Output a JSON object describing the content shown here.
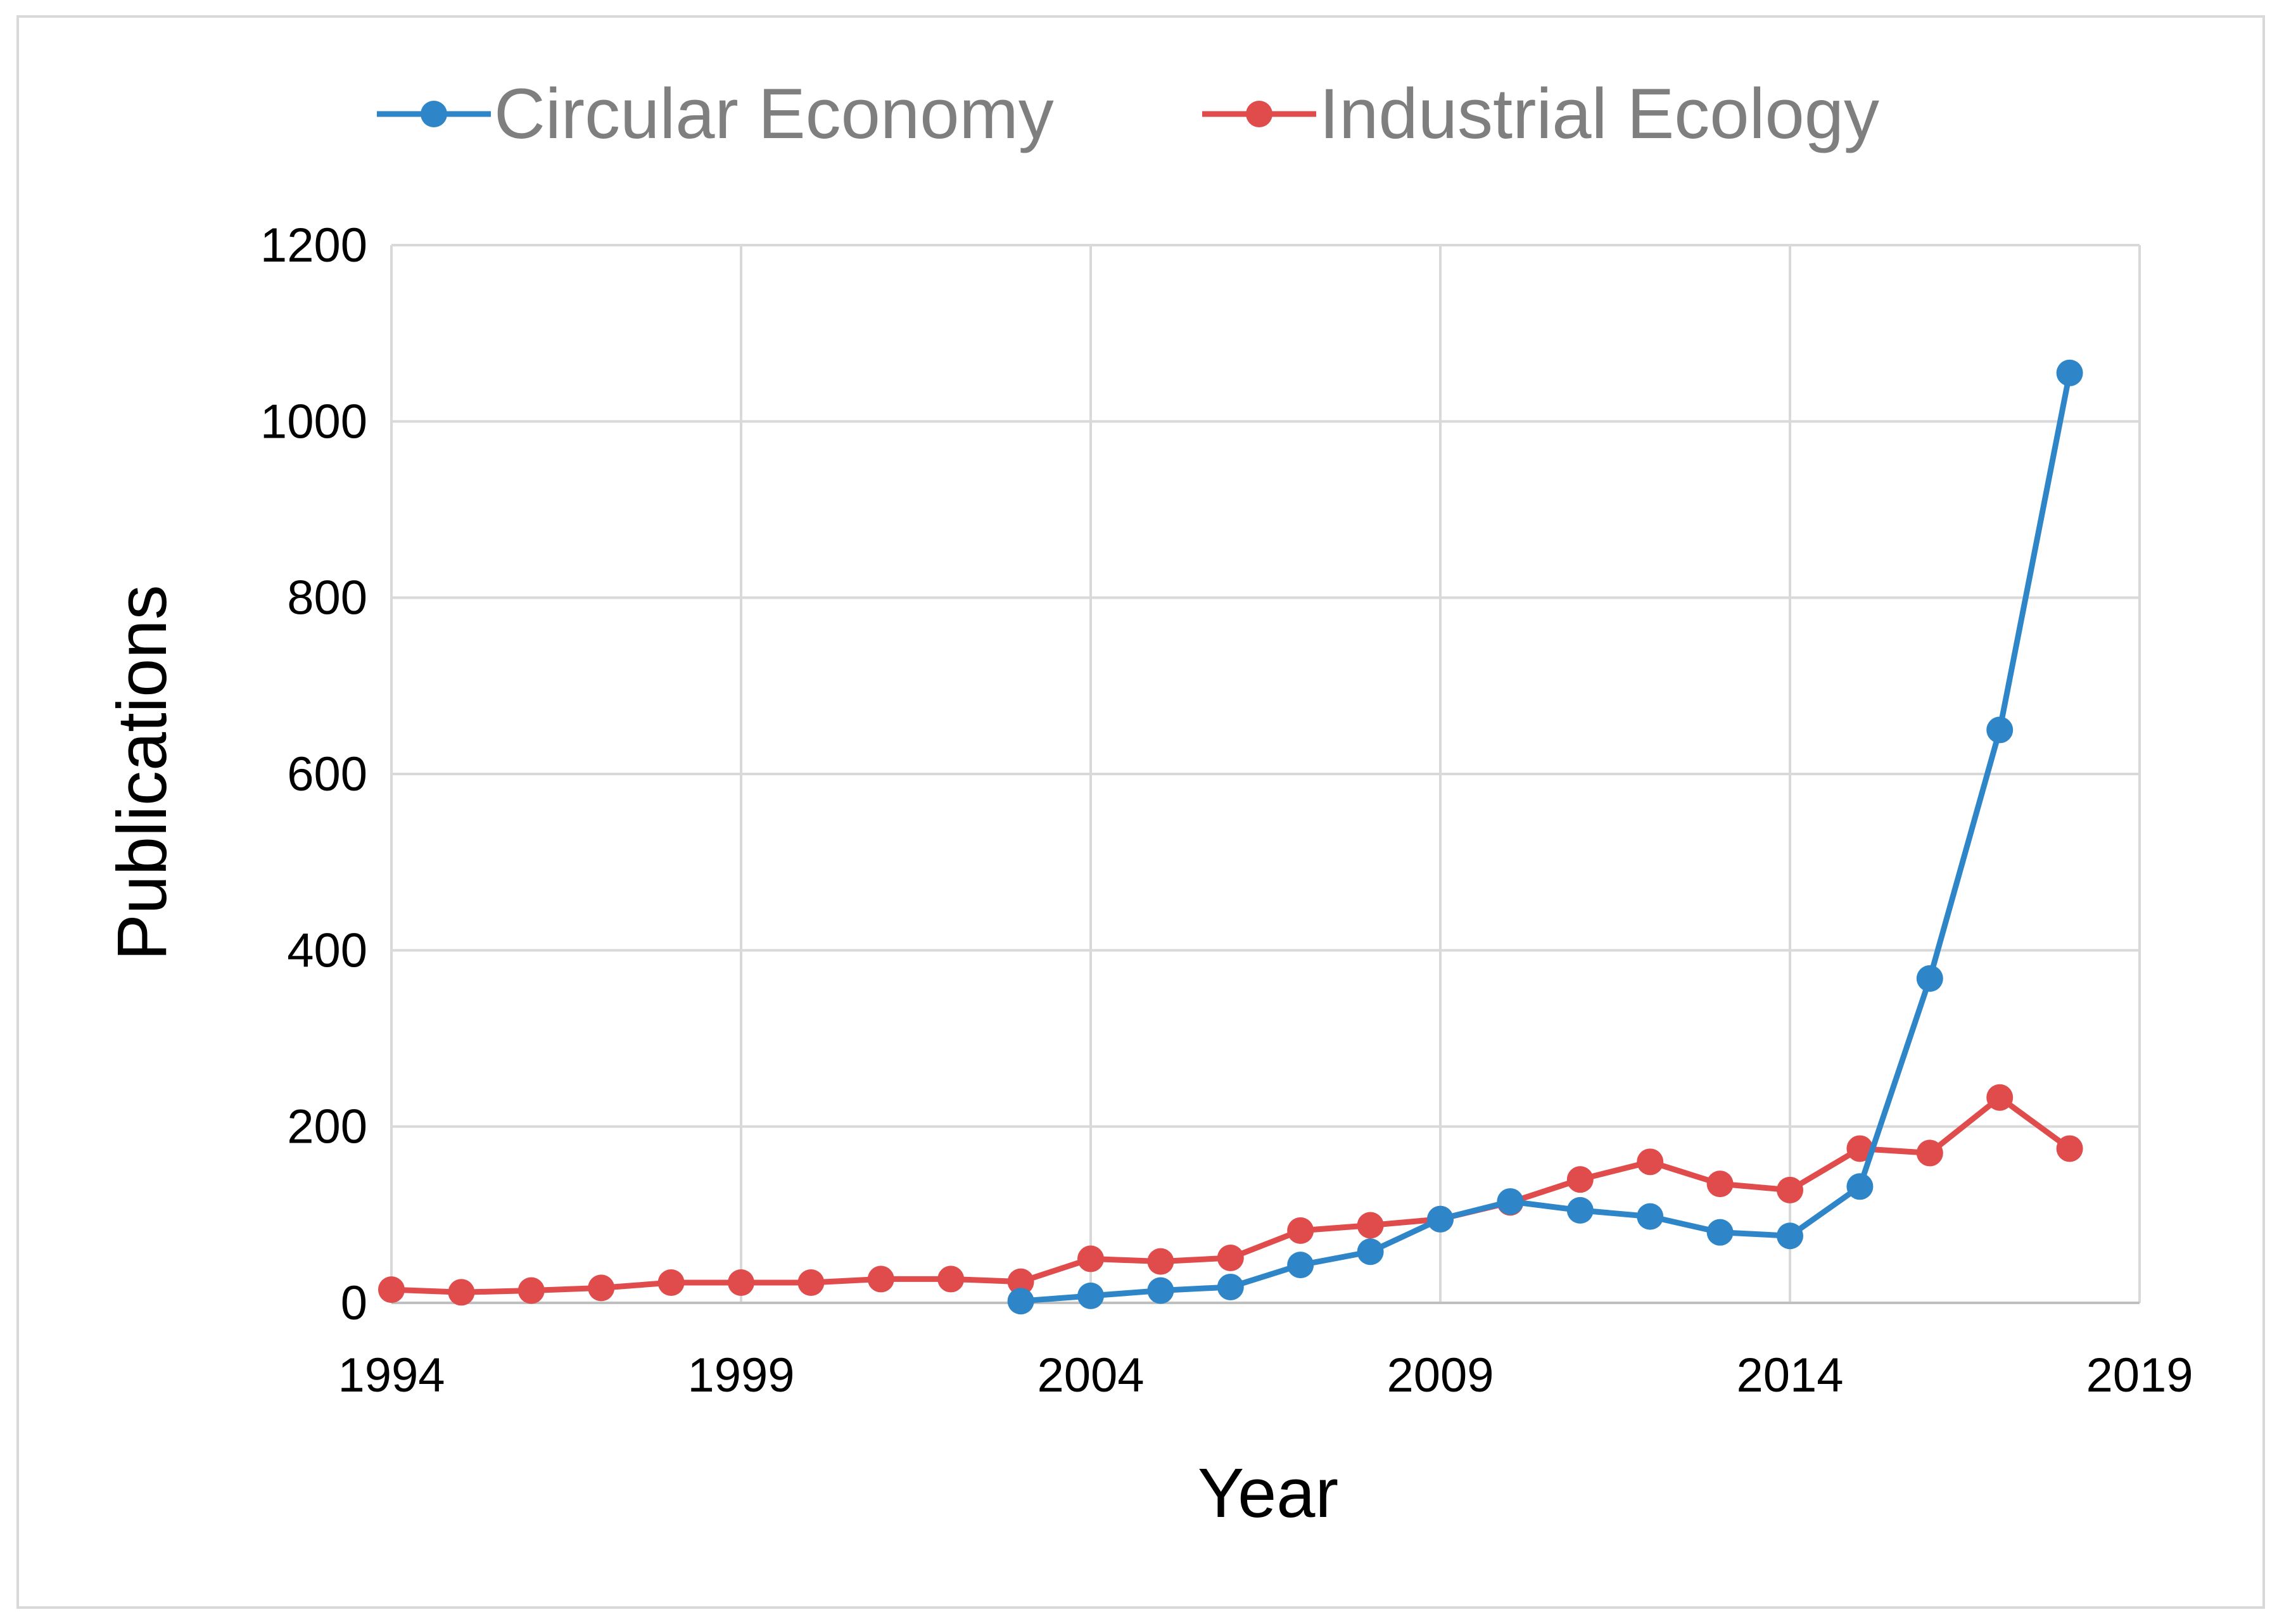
{
  "chart_data": {
    "type": "line",
    "title": "",
    "xlabel": "Year",
    "ylabel": "Publications",
    "xlim": [
      1994,
      2019
    ],
    "ylim": [
      0,
      1200
    ],
    "x_ticks": [
      1994,
      1999,
      2004,
      2009,
      2014,
      2019
    ],
    "y_ticks": [
      0,
      200,
      400,
      600,
      800,
      1000,
      1200
    ],
    "grid": true,
    "legend_position": "top",
    "series": [
      {
        "name": "Circular Economy",
        "color": "#2e86c8",
        "x": [
          2003,
          2004,
          2005,
          2006,
          2007,
          2008,
          2009,
          2010,
          2011,
          2012,
          2013,
          2014,
          2015,
          2016,
          2017,
          2018
        ],
        "values": [
          2,
          8,
          14,
          18,
          43,
          58,
          95,
          115,
          105,
          98,
          80,
          76,
          132,
          368,
          650,
          1055
        ]
      },
      {
        "name": "Industrial Ecology",
        "color": "#e04b4b",
        "x": [
          1994,
          1995,
          1996,
          1997,
          1998,
          1999,
          2000,
          2001,
          2002,
          2003,
          2004,
          2005,
          2006,
          2007,
          2008,
          2009,
          2010,
          2011,
          2012,
          2013,
          2014,
          2015,
          2016,
          2017,
          2018
        ],
        "values": [
          15,
          12,
          14,
          17,
          23,
          23,
          23,
          27,
          27,
          24,
          50,
          47,
          51,
          82,
          88,
          95,
          114,
          140,
          160,
          135,
          128,
          175,
          170,
          233,
          175
        ]
      }
    ]
  }
}
